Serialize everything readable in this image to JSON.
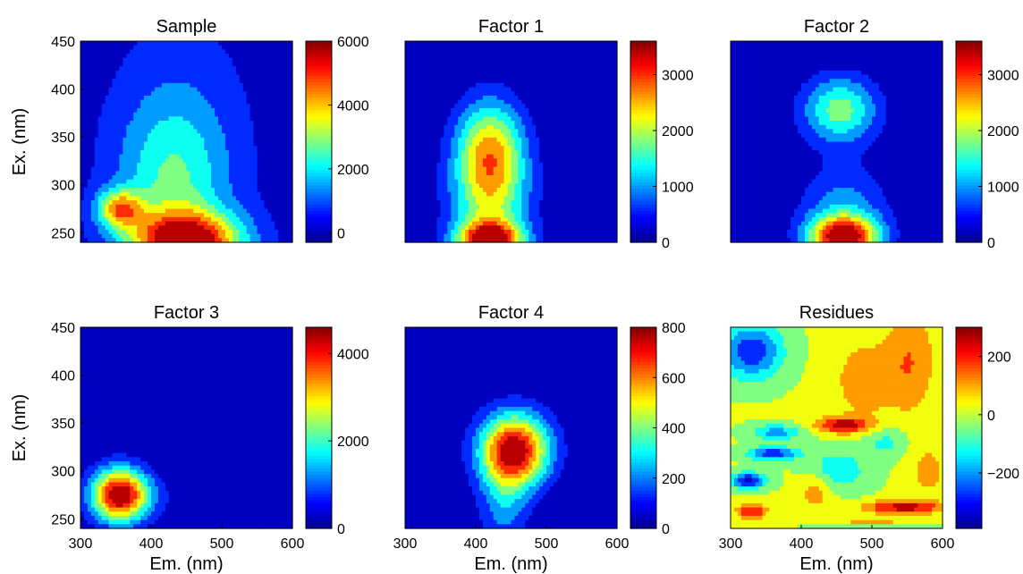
{
  "figure": {
    "xlabel": "Em. (nm)",
    "ylabel": "Ex. (nm)"
  },
  "colormap": [
    "#00008f",
    "#0000ff",
    "#0080ff",
    "#00ffff",
    "#80ff80",
    "#ffff00",
    "#ff8000",
    "#ff0000",
    "#800000"
  ],
  "chart_data": [
    {
      "type": "contour",
      "title": "Sample",
      "xlim": [
        300,
        600
      ],
      "ylim": [
        240,
        450
      ],
      "xticks": [
        300,
        400,
        500,
        600
      ],
      "xtick_labels": [
        "300",
        "400",
        "500",
        "600"
      ],
      "yticks": [
        250,
        300,
        350,
        400,
        450
      ],
      "ytick_labels": [
        "250",
        "300",
        "350",
        "400",
        "450"
      ],
      "show_xticks": false,
      "show_yticks": true,
      "clim": [
        -300,
        6000
      ],
      "cbar_ticks": [
        0,
        2000,
        4000,
        6000
      ],
      "cbar_tick_labels": [
        "0",
        "2000",
        "4000",
        "6000"
      ],
      "blobs": [
        {
          "x": 450,
          "y": 240,
          "amp": 5600,
          "sx": 55,
          "sy": 22
        },
        {
          "x": 355,
          "y": 275,
          "amp": 3700,
          "sx": 22,
          "sy": 14
        },
        {
          "x": 430,
          "y": 300,
          "amp": 2000,
          "sx": 55,
          "sy": 60
        },
        {
          "x": 440,
          "y": 360,
          "amp": 800,
          "sx": 70,
          "sy": 90
        }
      ]
    },
    {
      "type": "contour",
      "title": "Factor 1",
      "xlim": [
        300,
        600
      ],
      "ylim": [
        240,
        450
      ],
      "xticks": [
        300,
        400,
        500,
        600
      ],
      "xtick_labels": [
        "300",
        "400",
        "500",
        "600"
      ],
      "yticks": [
        250,
        300,
        350,
        400,
        450
      ],
      "ytick_labels": [
        "250",
        "300",
        "350",
        "400",
        "450"
      ],
      "show_xticks": false,
      "show_yticks": false,
      "clim": [
        0,
        3600
      ],
      "cbar_ticks": [
        0,
        1000,
        2000,
        3000
      ],
      "cbar_tick_labels": [
        "0",
        "1000",
        "2000",
        "3000"
      ],
      "blobs": [
        {
          "x": 420,
          "y": 335,
          "amp": 2400,
          "sx": 35,
          "sy": 38
        },
        {
          "x": 420,
          "y": 240,
          "amp": 3400,
          "sx": 32,
          "sy": 15
        },
        {
          "x": 420,
          "y": 275,
          "amp": 1300,
          "sx": 42,
          "sy": 38
        }
      ]
    },
    {
      "type": "contour",
      "title": "Factor 2",
      "xlim": [
        300,
        600
      ],
      "ylim": [
        240,
        450
      ],
      "xticks": [
        300,
        400,
        500,
        600
      ],
      "xtick_labels": [
        "300",
        "400",
        "500",
        "600"
      ],
      "yticks": [
        250,
        300,
        350,
        400,
        450
      ],
      "ytick_labels": [
        "250",
        "300",
        "350",
        "400",
        "450"
      ],
      "show_xticks": false,
      "show_yticks": false,
      "clim": [
        0,
        3600
      ],
      "cbar_ticks": [
        0,
        1000,
        2000,
        3000
      ],
      "cbar_tick_labels": [
        "0",
        "1000",
        "2000",
        "3000"
      ],
      "blobs": [
        {
          "x": 455,
          "y": 378,
          "amp": 1800,
          "sx": 38,
          "sy": 25
        },
        {
          "x": 460,
          "y": 245,
          "amp": 3500,
          "sx": 35,
          "sy": 16
        },
        {
          "x": 460,
          "y": 280,
          "amp": 900,
          "sx": 45,
          "sy": 30
        }
      ]
    },
    {
      "type": "contour",
      "title": "Factor 3",
      "xlim": [
        300,
        600
      ],
      "ylim": [
        240,
        450
      ],
      "xticks": [
        300,
        400,
        500,
        600
      ],
      "xtick_labels": [
        "300",
        "400",
        "500",
        "600"
      ],
      "yticks": [
        250,
        300,
        350,
        400,
        450
      ],
      "ytick_labels": [
        "250",
        "300",
        "350",
        "400",
        "450"
      ],
      "show_xticks": true,
      "show_yticks": true,
      "clim": [
        0,
        4600
      ],
      "cbar_ticks": [
        0,
        2000,
        4000
      ],
      "cbar_tick_labels": [
        "0",
        "2000",
        "4000"
      ],
      "blobs": [
        {
          "x": 355,
          "y": 275,
          "amp": 4500,
          "sx": 28,
          "sy": 20
        },
        {
          "x": 390,
          "y": 272,
          "amp": 400,
          "sx": 40,
          "sy": 18
        }
      ]
    },
    {
      "type": "contour",
      "title": "Factor 4",
      "xlim": [
        300,
        600
      ],
      "ylim": [
        240,
        450
      ],
      "xticks": [
        300,
        400,
        500,
        600
      ],
      "xtick_labels": [
        "300",
        "400",
        "500",
        "600"
      ],
      "yticks": [
        250,
        300,
        350,
        400,
        450
      ],
      "ytick_labels": [
        "250",
        "300",
        "350",
        "400",
        "450"
      ],
      "show_xticks": true,
      "show_yticks": false,
      "clim": [
        0,
        800
      ],
      "cbar_ticks": [
        0,
        200,
        400,
        600,
        800
      ],
      "cbar_tick_labels": [
        "0",
        "200",
        "400",
        "600",
        "800"
      ],
      "blobs": [
        {
          "x": 455,
          "y": 322,
          "amp": 780,
          "sx": 35,
          "sy": 27
        },
        {
          "x": 440,
          "y": 265,
          "amp": 200,
          "sx": 25,
          "sy": 35
        }
      ]
    },
    {
      "type": "contour",
      "title": "Residues",
      "xlim": [
        300,
        600
      ],
      "ylim": [
        240,
        450
      ],
      "xticks": [
        300,
        400,
        500,
        600
      ],
      "xtick_labels": [
        "300",
        "400",
        "500",
        "600"
      ],
      "yticks": [
        250,
        300,
        350,
        400,
        450
      ],
      "ytick_labels": [
        "250",
        "300",
        "350",
        "400",
        "450"
      ],
      "show_xticks": true,
      "show_yticks": false,
      "clim": [
        -390,
        300
      ],
      "cbar_ticks": [
        -200,
        0,
        200
      ],
      "cbar_tick_labels": [
        "−200",
        "0",
        "200"
      ],
      "base": 0,
      "blobs": [
        {
          "x": 460,
          "y": 348,
          "amp": 260,
          "sx": 28,
          "sy": 6
        },
        {
          "x": 490,
          "y": 395,
          "amp": 130,
          "sx": 30,
          "sy": 28
        },
        {
          "x": 555,
          "y": 415,
          "amp": 140,
          "sx": 25,
          "sy": 40
        },
        {
          "x": 545,
          "y": 262,
          "amp": 260,
          "sx": 40,
          "sy": 5
        },
        {
          "x": 500,
          "y": 243,
          "amp": 240,
          "sx": 30,
          "sy": 4
        },
        {
          "x": 330,
          "y": 258,
          "amp": 230,
          "sx": 15,
          "sy": 6
        },
        {
          "x": 360,
          "y": 318,
          "amp": -300,
          "sx": 25,
          "sy": 5
        },
        {
          "x": 365,
          "y": 340,
          "amp": -200,
          "sx": 25,
          "sy": 6
        },
        {
          "x": 325,
          "y": 290,
          "amp": -330,
          "sx": 18,
          "sy": 6
        },
        {
          "x": 330,
          "y": 425,
          "amp": -300,
          "sx": 30,
          "sy": 20
        },
        {
          "x": 450,
          "y": 300,
          "amp": -150,
          "sx": 30,
          "sy": 15
        },
        {
          "x": 500,
          "y": 240,
          "amp": -350,
          "sx": 40,
          "sy": 3
        },
        {
          "x": 420,
          "y": 280,
          "amp": 120,
          "sx": 18,
          "sy": 15
        },
        {
          "x": 520,
          "y": 330,
          "amp": -110,
          "sx": 22,
          "sy": 12
        },
        {
          "x": 580,
          "y": 300,
          "amp": 100,
          "sx": 20,
          "sy": 20
        }
      ]
    }
  ]
}
